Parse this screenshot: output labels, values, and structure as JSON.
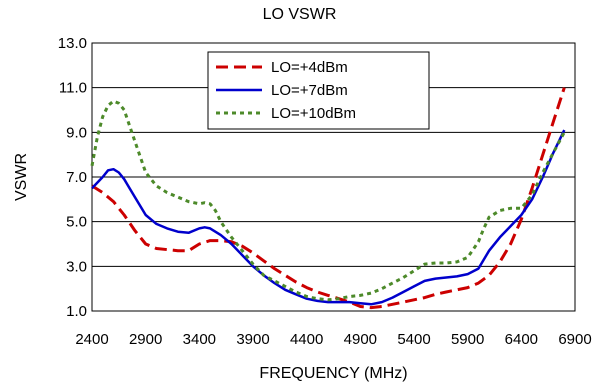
{
  "chart_data": {
    "type": "line",
    "title": "LO VSWR",
    "xlabel": "FREQUENCY (MHz)",
    "ylabel": "VSWR",
    "xlim": [
      2400,
      6900
    ],
    "ylim": [
      1.0,
      13.0
    ],
    "xticks": [
      2400,
      2900,
      3400,
      3900,
      4400,
      4900,
      5400,
      5900,
      6400,
      6900
    ],
    "xtick_labels": [
      "2400",
      "2900",
      "3400",
      "3900",
      "4400",
      "4900",
      "5400",
      "5900",
      "6400",
      "6900"
    ],
    "yticks": [
      1,
      3,
      5,
      7,
      9,
      11,
      13
    ],
    "ytick_labels": [
      "1.0",
      "3.0",
      "5.0",
      "7.0",
      "9.0",
      "11.0",
      "13.0"
    ],
    "grid": "horizontal",
    "legend_position": "top-center",
    "series": [
      {
        "name": "LO=+4dBm",
        "color": "#cc0000",
        "style": "dashed",
        "x": [
          2400,
          2500,
          2600,
          2700,
          2800,
          2900,
          3000,
          3100,
          3200,
          3300,
          3400,
          3500,
          3600,
          3700,
          3800,
          3900,
          4000,
          4100,
          4200,
          4300,
          4400,
          4500,
          4600,
          4700,
          4800,
          4900,
          5000,
          5100,
          5200,
          5300,
          5400,
          5500,
          5600,
          5700,
          5800,
          5900,
          6000,
          6100,
          6200,
          6300,
          6400,
          6500,
          6600,
          6700,
          6800
        ],
        "y": [
          6.6,
          6.3,
          5.9,
          5.3,
          4.6,
          4.0,
          3.8,
          3.75,
          3.7,
          3.7,
          4.0,
          4.15,
          4.15,
          4.1,
          3.9,
          3.6,
          3.25,
          2.9,
          2.6,
          2.3,
          2.05,
          1.85,
          1.7,
          1.55,
          1.4,
          1.2,
          1.15,
          1.2,
          1.3,
          1.4,
          1.5,
          1.6,
          1.75,
          1.85,
          1.95,
          2.05,
          2.25,
          2.6,
          3.2,
          4.0,
          5.1,
          6.5,
          8.0,
          9.5,
          11.0
        ]
      },
      {
        "name": "LO=+7dBm",
        "color": "#0000cc",
        "style": "solid",
        "x": [
          2400,
          2500,
          2550,
          2600,
          2650,
          2700,
          2800,
          2900,
          3000,
          3100,
          3200,
          3300,
          3400,
          3450,
          3500,
          3600,
          3700,
          3800,
          3900,
          4000,
          4100,
          4200,
          4300,
          4400,
          4500,
          4600,
          4700,
          4800,
          4900,
          5000,
          5100,
          5200,
          5300,
          5400,
          5500,
          5600,
          5700,
          5800,
          5900,
          6000,
          6100,
          6200,
          6300,
          6400,
          6500,
          6600,
          6700,
          6800
        ],
        "y": [
          6.5,
          7.0,
          7.3,
          7.35,
          7.2,
          6.9,
          6.1,
          5.3,
          4.9,
          4.7,
          4.55,
          4.5,
          4.7,
          4.75,
          4.7,
          4.4,
          4.0,
          3.5,
          3.0,
          2.6,
          2.25,
          1.95,
          1.75,
          1.55,
          1.45,
          1.4,
          1.4,
          1.4,
          1.35,
          1.3,
          1.4,
          1.6,
          1.85,
          2.1,
          2.35,
          2.45,
          2.5,
          2.55,
          2.65,
          2.9,
          3.7,
          4.3,
          4.8,
          5.3,
          6.0,
          7.0,
          8.1,
          9.1
        ]
      },
      {
        "name": "LO=+10dBm",
        "color": "#4d8a2a",
        "style": "dotted",
        "x": [
          2400,
          2450,
          2500,
          2550,
          2600,
          2650,
          2700,
          2800,
          2900,
          3000,
          3100,
          3200,
          3300,
          3400,
          3450,
          3500,
          3550,
          3600,
          3700,
          3800,
          3900,
          4000,
          4100,
          4200,
          4300,
          4400,
          4500,
          4600,
          4700,
          4800,
          4900,
          5000,
          5100,
          5200,
          5300,
          5400,
          5500,
          5600,
          5700,
          5800,
          5900,
          6000,
          6050,
          6100,
          6200,
          6300,
          6400,
          6500,
          6600,
          6700,
          6800
        ],
        "y": [
          7.5,
          8.8,
          9.7,
          10.2,
          10.4,
          10.3,
          10.0,
          8.6,
          7.2,
          6.6,
          6.3,
          6.1,
          5.9,
          5.8,
          5.85,
          5.8,
          5.5,
          5.0,
          4.3,
          3.7,
          3.1,
          2.6,
          2.35,
          2.1,
          1.85,
          1.65,
          1.55,
          1.5,
          1.55,
          1.65,
          1.7,
          1.8,
          2.0,
          2.25,
          2.5,
          2.8,
          3.1,
          3.15,
          3.15,
          3.2,
          3.4,
          4.1,
          4.7,
          5.2,
          5.5,
          5.6,
          5.6,
          6.2,
          7.2,
          8.1,
          9.0
        ]
      }
    ]
  }
}
